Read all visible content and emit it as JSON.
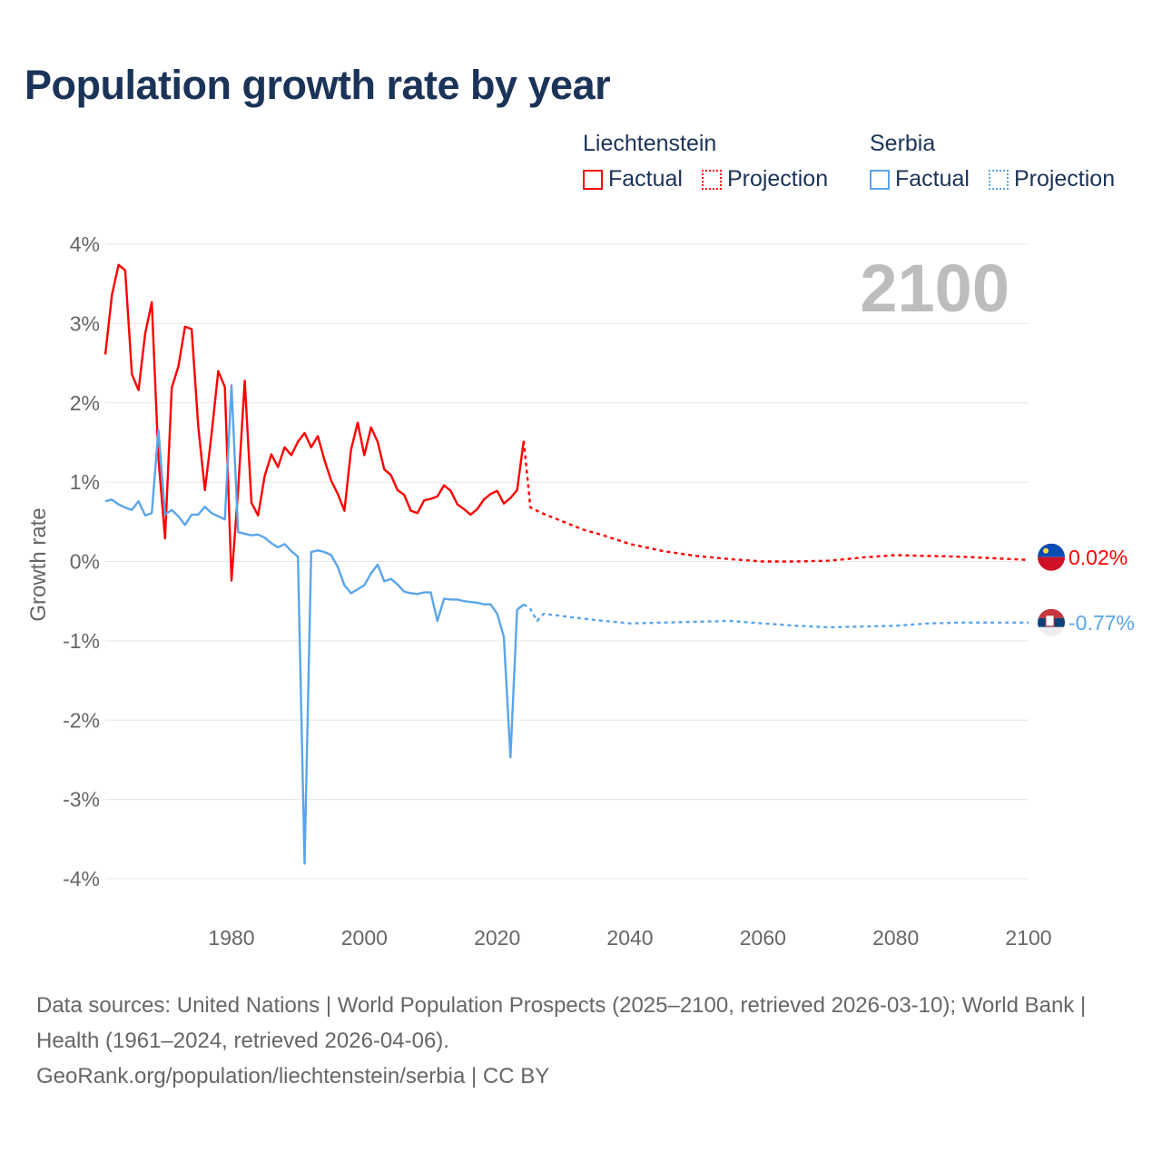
{
  "title": "Population growth rate by year",
  "legend": {
    "groups": [
      {
        "name": "Liechtenstein",
        "factual": "Factual",
        "projection": "Projection",
        "color": "#ff0000"
      },
      {
        "name": "Serbia",
        "factual": "Factual",
        "projection": "Projection",
        "color": "#5aa5ea"
      }
    ]
  },
  "year_watermark": "2100",
  "footer": {
    "line1": "Data sources: United Nations | World Population Prospects (2025–2100, retrieved 2026-03-10); World Bank | Health (1961–2024, retrieved 2026-04-06).",
    "line2": "GeoRank.org/population/liechtenstein/serbia | CC BY"
  },
  "chart_data": {
    "type": "line",
    "title": "Population growth rate by year",
    "xlabel": "",
    "ylabel": "Growth rate",
    "xlim": [
      1961,
      2100
    ],
    "ylim": [
      -4,
      4
    ],
    "xticks": [
      1980,
      2000,
      2020,
      2040,
      2060,
      2080,
      2100
    ],
    "yticks": [
      4,
      3,
      2,
      1,
      0,
      -1,
      -2,
      -3,
      -4
    ],
    "ytick_labels": [
      "4%",
      "3%",
      "2%",
      "1%",
      "0%",
      "-1%",
      "-2%",
      "-3%",
      "-4%"
    ],
    "grid": true,
    "legend_position": "top-right",
    "series": [
      {
        "name": "Liechtenstein",
        "kind": "Factual",
        "color": "#ff0000",
        "dash": false,
        "x_start": 1961,
        "values": [
          2.61,
          3.36,
          3.74,
          3.67,
          2.36,
          2.16,
          2.87,
          3.27,
          1.3,
          0.29,
          2.19,
          2.46,
          2.96,
          2.93,
          1.7,
          0.9,
          1.61,
          2.4,
          2.2,
          -0.24,
          0.9,
          2.28,
          0.74,
          0.58,
          1.08,
          1.35,
          1.19,
          1.44,
          1.34,
          1.51,
          1.62,
          1.44,
          1.58,
          1.28,
          1.02,
          0.85,
          0.64,
          1.41,
          1.75,
          1.34,
          1.69,
          1.51,
          1.16,
          1.09,
          0.9,
          0.84,
          0.64,
          0.61,
          0.77,
          0.79,
          0.82,
          0.96,
          0.89,
          0.72,
          0.66,
          0.59,
          0.66,
          0.78,
          0.85,
          0.89,
          0.73,
          0.8,
          0.9,
          1.52
        ]
      },
      {
        "name": "Liechtenstein",
        "kind": "Projection",
        "color": "#ff0000",
        "dash": true,
        "x": [
          2024,
          2025,
          2027,
          2030,
          2033,
          2036,
          2040,
          2045,
          2050,
          2055,
          2060,
          2065,
          2070,
          2075,
          2080,
          2085,
          2090,
          2095,
          2100
        ],
        "values": [
          1.52,
          0.68,
          0.6,
          0.5,
          0.4,
          0.33,
          0.22,
          0.13,
          0.07,
          0.03,
          0.0,
          0.0,
          0.01,
          0.05,
          0.08,
          0.07,
          0.06,
          0.04,
          0.02
        ]
      },
      {
        "name": "Serbia",
        "kind": "Factual",
        "color": "#5aa5ea",
        "dash": false,
        "x_start": 1961,
        "values": [
          0.76,
          0.78,
          0.72,
          0.68,
          0.65,
          0.76,
          0.58,
          0.61,
          1.66,
          0.59,
          0.65,
          0.57,
          0.46,
          0.59,
          0.59,
          0.69,
          0.61,
          0.57,
          0.53,
          2.22,
          0.37,
          0.35,
          0.33,
          0.34,
          0.3,
          0.23,
          0.18,
          0.22,
          0.13,
          0.06,
          -3.81,
          0.12,
          0.14,
          0.12,
          0.08,
          -0.07,
          -0.3,
          -0.4,
          -0.35,
          -0.3,
          -0.15,
          -0.04,
          -0.25,
          -0.22,
          -0.29,
          -0.38,
          -0.4,
          -0.41,
          -0.39,
          -0.39,
          -0.75,
          -0.47,
          -0.48,
          -0.48,
          -0.5,
          -0.51,
          -0.52,
          -0.54,
          -0.54,
          -0.66,
          -0.95,
          -2.47,
          -0.61,
          -0.54
        ]
      },
      {
        "name": "Serbia",
        "kind": "Projection",
        "color": "#5aa5ea",
        "dash": true,
        "x": [
          2024,
          2025,
          2026,
          2027,
          2030,
          2035,
          2040,
          2045,
          2050,
          2055,
          2060,
          2065,
          2070,
          2075,
          2080,
          2085,
          2090,
          2095,
          2100
        ],
        "values": [
          -0.54,
          -0.6,
          -0.75,
          -0.66,
          -0.69,
          -0.74,
          -0.78,
          -0.77,
          -0.76,
          -0.75,
          -0.78,
          -0.81,
          -0.83,
          -0.82,
          -0.81,
          -0.78,
          -0.77,
          -0.77,
          -0.77
        ]
      }
    ],
    "end_labels": [
      {
        "country": "Liechtenstein",
        "text": "0.02%",
        "value": 0.02,
        "color": "#ff0000"
      },
      {
        "country": "Serbia",
        "text": "-0.77%",
        "value": -0.77,
        "color": "#5aa5ea"
      }
    ]
  }
}
